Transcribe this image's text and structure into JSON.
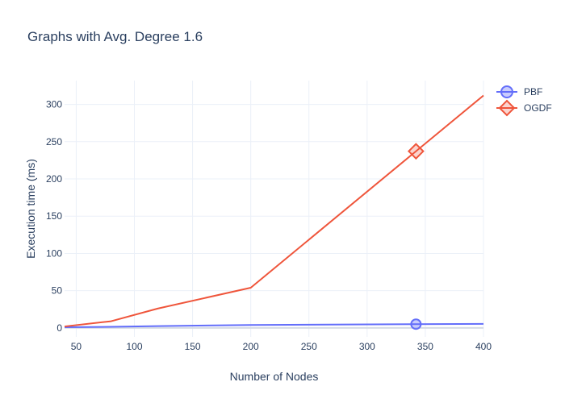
{
  "chart_data": {
    "type": "line",
    "title": "Graphs with Avg. Degree 1.6",
    "xlabel": "Number of Nodes",
    "ylabel": "Execution time (ms)",
    "xlim": [
      40,
      400
    ],
    "ylim": [
      -12,
      332
    ],
    "x_ticks": [
      50,
      100,
      150,
      200,
      250,
      300,
      350,
      400
    ],
    "y_ticks": [
      0,
      50,
      100,
      150,
      200,
      250,
      300
    ],
    "grid": true,
    "legend_position": "top-right",
    "series": [
      {
        "name": "PBF",
        "color": "#636efa",
        "marker": "circle",
        "x": [
          40,
          80,
          120,
          200,
          400
        ],
        "y": [
          1,
          1.5,
          2.5,
          4,
          5.5
        ]
      },
      {
        "name": "OGDF",
        "color": "#ef553b",
        "marker": "diamond",
        "x": [
          40,
          80,
          120,
          200,
          400
        ],
        "y": [
          2,
          9,
          26,
          54,
          312
        ]
      }
    ]
  }
}
